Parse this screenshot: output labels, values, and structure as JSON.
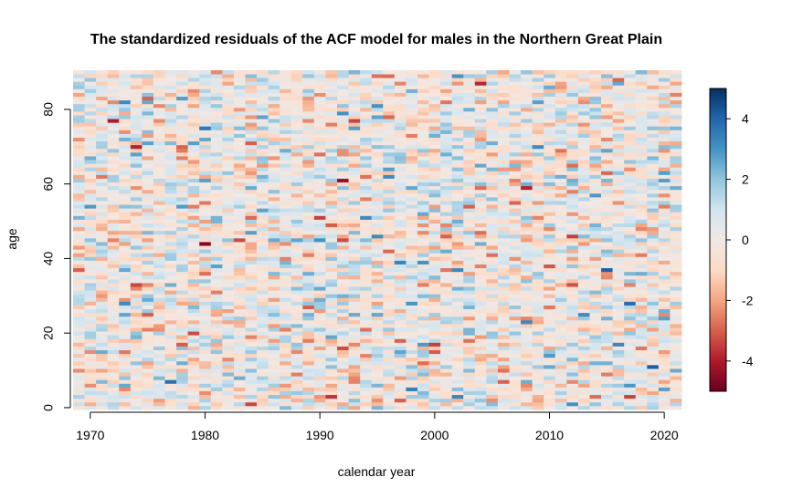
{
  "chart_data": {
    "type": "heatmap",
    "title": "The standardized residuals of the ACF model for males in the Northern Great Plain",
    "xlabel": "calendar year",
    "ylabel": "age",
    "x_range": [
      1969,
      2021
    ],
    "y_range": [
      0,
      90
    ],
    "x_ticks": [
      1970,
      1980,
      1990,
      2000,
      2010,
      2020
    ],
    "y_ticks": [
      0,
      20,
      40,
      60,
      80
    ],
    "colorbar": {
      "range": [
        -5,
        5
      ],
      "ticks": [
        -4,
        -2,
        0,
        2,
        4
      ],
      "colors": [
        "#67001f",
        "#b2182b",
        "#d6604d",
        "#f4a582",
        "#fddbc7",
        "#f2e8e3",
        "#d1e5f0",
        "#92c5de",
        "#4393c3",
        "#2166ac",
        "#053061"
      ]
    },
    "cell_value_range": [
      -5,
      5
    ],
    "grid": false,
    "legend": "right"
  }
}
